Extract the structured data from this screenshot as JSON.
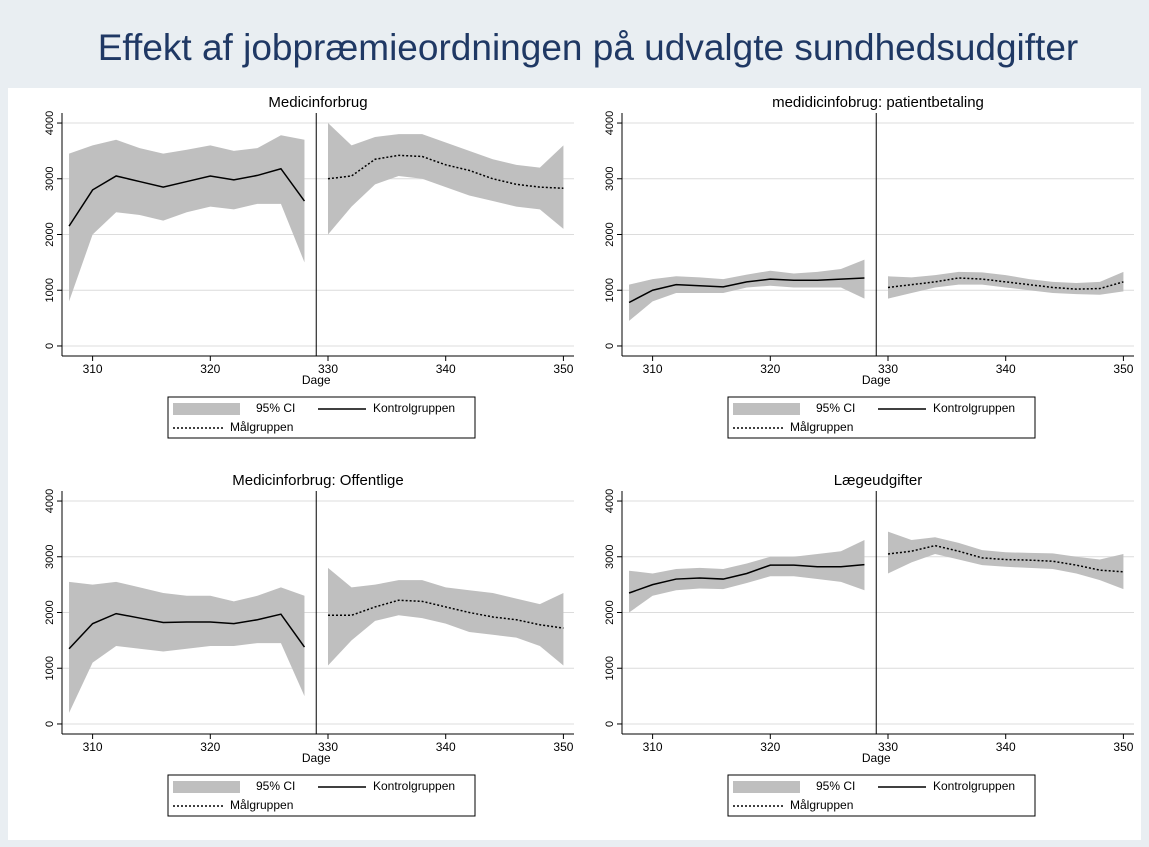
{
  "title": "Effekt af jobpræmieordningen på udvalgte sundhedsudgifter",
  "chart_data": [
    {
      "type": "line",
      "title": "Medicinforbrug",
      "xlabel": "Dage",
      "xlim": [
        307.4,
        350.9
      ],
      "xticks": [
        310,
        320,
        330,
        340,
        350
      ],
      "ylim": [
        -180,
        4180
      ],
      "yticks": [
        0,
        1000,
        2000,
        3000,
        4000
      ],
      "grid": true,
      "vline": 329,
      "band_label": "95% CI",
      "band_color": "#bfbfbf",
      "series": [
        {
          "name": "Kontrolgruppen",
          "color": "#000000",
          "style": "solid",
          "x": [
            308,
            310,
            312,
            314,
            316,
            318,
            320,
            322,
            324,
            326,
            328
          ],
          "values": [
            2150,
            2800,
            3050,
            2950,
            2850,
            2950,
            3050,
            2980,
            3060,
            3180,
            2600
          ],
          "lower": [
            800,
            2000,
            2400,
            2350,
            2250,
            2400,
            2500,
            2450,
            2550,
            2550,
            1500
          ],
          "upper": [
            3450,
            3600,
            3700,
            3550,
            3450,
            3520,
            3600,
            3500,
            3550,
            3780,
            3700
          ]
        },
        {
          "name": "Målgruppen",
          "color": "#000000",
          "style": "dotted",
          "x": [
            330,
            332,
            334,
            336,
            338,
            340,
            342,
            344,
            346,
            348,
            350
          ],
          "values": [
            3000,
            3050,
            3350,
            3420,
            3400,
            3250,
            3150,
            3000,
            2900,
            2850,
            2830
          ],
          "lower": [
            2000,
            2500,
            2900,
            3050,
            3000,
            2850,
            2700,
            2600,
            2500,
            2450,
            2100
          ],
          "upper": [
            4000,
            3600,
            3750,
            3800,
            3800,
            3650,
            3500,
            3350,
            3250,
            3200,
            3600
          ]
        }
      ]
    },
    {
      "type": "line",
      "title": "medidicinfobrug: patientbetaling",
      "xlabel": "Dage",
      "xlim": [
        307.4,
        350.9
      ],
      "xticks": [
        310,
        320,
        330,
        340,
        350
      ],
      "ylim": [
        -180,
        4180
      ],
      "yticks": [
        0,
        1000,
        2000,
        3000,
        4000
      ],
      "grid": true,
      "vline": 329,
      "band_label": "95% CI",
      "band_color": "#bfbfbf",
      "series": [
        {
          "name": "Kontrolgruppen",
          "color": "#000000",
          "style": "solid",
          "x": [
            308,
            310,
            312,
            314,
            316,
            318,
            320,
            322,
            324,
            326,
            328
          ],
          "values": [
            780,
            1000,
            1100,
            1080,
            1060,
            1150,
            1200,
            1180,
            1180,
            1200,
            1220
          ],
          "lower": [
            450,
            800,
            950,
            950,
            950,
            1050,
            1080,
            1050,
            1050,
            1050,
            850
          ],
          "upper": [
            1100,
            1200,
            1250,
            1230,
            1200,
            1280,
            1350,
            1300,
            1330,
            1380,
            1550
          ]
        },
        {
          "name": "Målgruppen",
          "color": "#000000",
          "style": "dotted",
          "x": [
            330,
            332,
            334,
            336,
            338,
            340,
            342,
            344,
            346,
            348,
            350
          ],
          "values": [
            1050,
            1100,
            1150,
            1220,
            1200,
            1150,
            1100,
            1050,
            1020,
            1030,
            1150
          ],
          "lower": [
            850,
            950,
            1050,
            1100,
            1100,
            1050,
            1000,
            950,
            930,
            920,
            980
          ],
          "upper": [
            1250,
            1230,
            1270,
            1330,
            1320,
            1270,
            1200,
            1150,
            1130,
            1150,
            1330
          ]
        }
      ]
    },
    {
      "type": "line",
      "title": "Medicinforbrug: Offentlige",
      "xlabel": "Dage",
      "xlim": [
        307.4,
        350.9
      ],
      "xticks": [
        310,
        320,
        330,
        340,
        350
      ],
      "ylim": [
        -180,
        4180
      ],
      "yticks": [
        0,
        1000,
        2000,
        3000,
        4000
      ],
      "grid": true,
      "vline": 329,
      "band_label": "95% CI",
      "band_color": "#bfbfbf",
      "series": [
        {
          "name": "Kontrolgruppen",
          "color": "#000000",
          "style": "solid",
          "x": [
            308,
            310,
            312,
            314,
            316,
            318,
            320,
            322,
            324,
            326,
            328
          ],
          "values": [
            1350,
            1800,
            1980,
            1900,
            1820,
            1830,
            1830,
            1800,
            1870,
            1970,
            1380
          ],
          "lower": [
            200,
            1100,
            1400,
            1350,
            1300,
            1350,
            1400,
            1400,
            1450,
            1450,
            500
          ],
          "upper": [
            2550,
            2500,
            2550,
            2450,
            2350,
            2300,
            2300,
            2200,
            2300,
            2450,
            2300
          ]
        },
        {
          "name": "Målgruppen",
          "color": "#000000",
          "style": "dotted",
          "x": [
            330,
            332,
            334,
            336,
            338,
            340,
            342,
            344,
            346,
            348,
            350
          ],
          "values": [
            1950,
            1950,
            2100,
            2220,
            2200,
            2100,
            2000,
            1920,
            1870,
            1780,
            1720
          ],
          "lower": [
            1050,
            1500,
            1850,
            1950,
            1900,
            1800,
            1650,
            1600,
            1550,
            1400,
            1050
          ],
          "upper": [
            2800,
            2450,
            2500,
            2580,
            2580,
            2450,
            2400,
            2350,
            2250,
            2150,
            2350
          ]
        }
      ]
    },
    {
      "type": "line",
      "title": "Lægeudgifter",
      "xlabel": "Dage",
      "xlim": [
        307.4,
        350.9
      ],
      "xticks": [
        310,
        320,
        330,
        340,
        350
      ],
      "ylim": [
        -180,
        4180
      ],
      "yticks": [
        0,
        1000,
        2000,
        3000,
        4000
      ],
      "grid": true,
      "vline": 329,
      "band_label": "95% CI",
      "band_color": "#bfbfbf",
      "series": [
        {
          "name": "Kontrolgruppen",
          "color": "#000000",
          "style": "solid",
          "x": [
            308,
            310,
            312,
            314,
            316,
            318,
            320,
            322,
            324,
            326,
            328
          ],
          "values": [
            2350,
            2500,
            2600,
            2620,
            2600,
            2700,
            2850,
            2850,
            2820,
            2820,
            2860
          ],
          "lower": [
            2000,
            2300,
            2400,
            2430,
            2420,
            2530,
            2650,
            2650,
            2600,
            2550,
            2400
          ],
          "upper": [
            2750,
            2700,
            2780,
            2800,
            2780,
            2880,
            3000,
            3000,
            3050,
            3100,
            3300
          ]
        },
        {
          "name": "Målgruppen",
          "color": "#000000",
          "style": "dotted",
          "x": [
            330,
            332,
            334,
            336,
            338,
            340,
            342,
            344,
            346,
            348,
            350
          ],
          "values": [
            3050,
            3100,
            3200,
            3100,
            2980,
            2950,
            2940,
            2920,
            2850,
            2760,
            2730
          ],
          "lower": [
            2700,
            2900,
            3050,
            2950,
            2850,
            2820,
            2800,
            2780,
            2700,
            2580,
            2420
          ],
          "upper": [
            3450,
            3300,
            3350,
            3250,
            3120,
            3080,
            3070,
            3060,
            3000,
            2950,
            3050
          ]
        }
      ]
    }
  ]
}
